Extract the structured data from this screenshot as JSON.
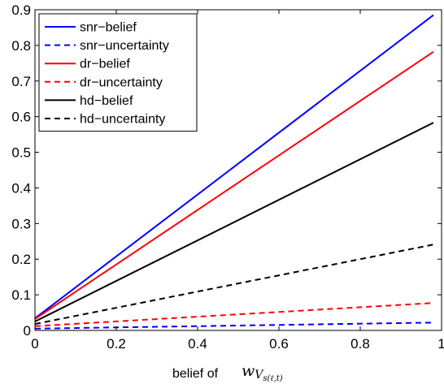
{
  "chart_data": {
    "type": "line",
    "xlabel": "belief of",
    "xlabel_math": {
      "main": "w",
      "sub": "V",
      "subsub": "s(ℓ,t)"
    },
    "xlim": [
      0,
      1
    ],
    "ylim": [
      0,
      0.9
    ],
    "xticks": [
      "0",
      "0.2",
      "0.4",
      "0.6",
      "0.8",
      "1"
    ],
    "yticks": [
      "0",
      "0.1",
      "0.2",
      "0.3",
      "0.4",
      "0.5",
      "0.6",
      "0.7",
      "0.8",
      "0.9"
    ],
    "grid": false,
    "legend_position": "top-left",
    "series": [
      {
        "name": "snr−belief",
        "color": "#0000ff",
        "dash": "solid",
        "x": [
          0,
          0.98
        ],
        "y": [
          0.034,
          0.885
        ]
      },
      {
        "name": "snr−uncertainty",
        "color": "#0000ff",
        "dash": "dashed",
        "x": [
          0,
          0.98
        ],
        "y": [
          0.005,
          0.022
        ]
      },
      {
        "name": "dr−belief",
        "color": "#ff0000",
        "dash": "solid",
        "x": [
          0,
          0.98
        ],
        "y": [
          0.032,
          0.782
        ]
      },
      {
        "name": "dr−uncertainty",
        "color": "#ff0000",
        "dash": "dashed",
        "x": [
          0,
          0.98
        ],
        "y": [
          0.012,
          0.077
        ]
      },
      {
        "name": "hd−belief",
        "color": "#000000",
        "dash": "solid",
        "x": [
          0,
          0.98
        ],
        "y": [
          0.025,
          0.583
        ]
      },
      {
        "name": "hd−uncertainty",
        "color": "#000000",
        "dash": "dashed",
        "x": [
          0,
          0.98
        ],
        "y": [
          0.018,
          0.241
        ]
      }
    ]
  }
}
